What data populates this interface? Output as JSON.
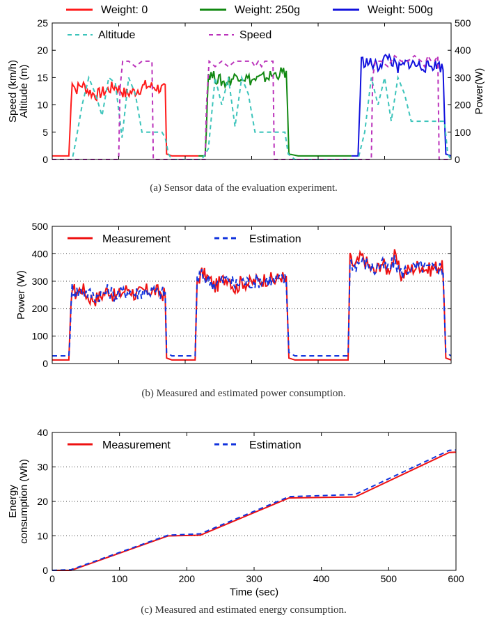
{
  "colors": {
    "weight_0": "#ff1a1a",
    "weight_250g": "#118811",
    "weight_500g": "#1111dd",
    "altitude": "#3cc4bb",
    "speed": "#bb33bb",
    "measurement": "#ee1111",
    "estimation": "#1133dd",
    "power_axis": "#ff2222"
  },
  "chart_data": [
    {
      "type": "line",
      "caption": "(a) Sensor data of the evaluation experiment.",
      "ylabel": "Speed (km/h)\nAltitude (m)",
      "y2label": "Power(W)",
      "ylim": [
        0,
        25
      ],
      "y2lim": [
        0,
        500
      ],
      "yticks": [
        0,
        5,
        10,
        15,
        20,
        25
      ],
      "y2ticks": [
        0,
        100,
        200,
        300,
        400,
        500
      ],
      "xlim": [
        0,
        600
      ],
      "grid": false,
      "legend_top": [
        "Weight: 0",
        "Weight: 250g",
        "Weight: 500g"
      ],
      "legend_inner": [
        "Altitude",
        "Speed"
      ],
      "series": [
        {
          "name": "Weight: 0",
          "axis": "power",
          "x": [
            0,
            25,
            30,
            35,
            45,
            55,
            65,
            80,
            95,
            110,
            125,
            140,
            155,
            170,
            172,
            180,
            220
          ],
          "y": [
            13,
            13,
            295,
            255,
            275,
            250,
            235,
            250,
            270,
            240,
            250,
            270,
            265,
            255,
            20,
            13,
            13
          ]
        },
        {
          "name": "Weight: 250g",
          "axis": "power",
          "x": [
            220,
            230,
            235,
            245,
            260,
            280,
            300,
            320,
            340,
            352,
            356,
            370,
            450
          ],
          "y": [
            13,
            13,
            315,
            300,
            280,
            310,
            290,
            300,
            315,
            320,
            20,
            13,
            13
          ]
        },
        {
          "name": "Weight: 500g",
          "axis": "power",
          "x": [
            450,
            460,
            465,
            475,
            490,
            505,
            520,
            535,
            550,
            565,
            580,
            588,
            592,
            600
          ],
          "y": [
            13,
            13,
            360,
            355,
            340,
            380,
            330,
            355,
            345,
            340,
            350,
            330,
            20,
            13
          ]
        },
        {
          "name": "Altitude",
          "axis": "left",
          "x": [
            0,
            30,
            35,
            45,
            55,
            65,
            75,
            85,
            95,
            105,
            115,
            125,
            135,
            145,
            155,
            165,
            170,
            175,
            180,
            225,
            235,
            245,
            255,
            265,
            275,
            285,
            295,
            305,
            315,
            325,
            335,
            345,
            350,
            355,
            365,
            460,
            470,
            480,
            490,
            500,
            510,
            520,
            530,
            540,
            550,
            560,
            570,
            580,
            590,
            595,
            600
          ],
          "y": [
            0,
            0,
            3,
            10,
            15,
            12,
            8,
            15,
            14,
            4,
            15,
            12,
            5,
            5,
            5,
            5,
            4,
            1,
            0,
            0,
            2,
            15,
            10,
            15,
            6,
            15,
            12,
            5,
            5,
            5,
            5,
            5,
            5,
            1,
            0,
            0,
            5,
            15,
            10,
            15,
            7,
            15,
            12,
            7,
            7,
            7,
            7,
            7,
            7,
            1,
            0
          ],
          "dash": [
            6,
            5
          ]
        },
        {
          "name": "Speed",
          "axis": "left",
          "x": [
            0,
            100,
            102,
            106,
            115,
            125,
            135,
            145,
            150,
            152,
            230,
            232,
            236,
            245,
            255,
            265,
            275,
            285,
            300,
            305,
            310,
            315,
            320,
            325,
            332,
            334,
            480,
            482,
            486,
            495,
            505,
            515,
            525,
            535,
            545,
            555,
            560,
            565,
            570,
            575,
            580,
            582,
            600
          ],
          "y": [
            0,
            0,
            13,
            18,
            18,
            17,
            18,
            18,
            18,
            0,
            0,
            10,
            18,
            17,
            18,
            17,
            18,
            18,
            18,
            17,
            18,
            17,
            18,
            18,
            18,
            0,
            0,
            15,
            18,
            18,
            17,
            19,
            18,
            18,
            19,
            18,
            17,
            19,
            18,
            18,
            19,
            0,
            0
          ],
          "dash": [
            6,
            5
          ]
        }
      ]
    },
    {
      "type": "line",
      "caption": "(b) Measured and estimated power consumption.",
      "ylabel": "Power (W)",
      "ylim": [
        0,
        500
      ],
      "yticks": [
        0,
        100,
        200,
        300,
        400,
        500
      ],
      "xlim": [
        0,
        600
      ],
      "grid": true,
      "legend": [
        "Measurement",
        "Estimation"
      ],
      "series": [
        {
          "name": "Measurement",
          "x": [
            0,
            25,
            30,
            35,
            45,
            55,
            65,
            75,
            85,
            95,
            105,
            115,
            125,
            140,
            155,
            170,
            172,
            180,
            215,
            218,
            225,
            235,
            245,
            255,
            265,
            275,
            285,
            295,
            305,
            315,
            325,
            335,
            345,
            350,
            352,
            356,
            365,
            445,
            448,
            455,
            465,
            475,
            485,
            495,
            505,
            515,
            525,
            535,
            545,
            555,
            565,
            575,
            585,
            588,
            592,
            600
          ],
          "y": [
            13,
            13,
            290,
            255,
            275,
            240,
            235,
            250,
            270,
            240,
            260,
            275,
            250,
            265,
            265,
            250,
            20,
            13,
            13,
            300,
            330,
            310,
            280,
            300,
            320,
            270,
            300,
            290,
            300,
            305,
            310,
            300,
            320,
            300,
            300,
            20,
            13,
            13,
            380,
            350,
            390,
            360,
            330,
            370,
            340,
            390,
            320,
            340,
            350,
            360,
            340,
            350,
            360,
            340,
            20,
            13
          ],
          "dash": null
        },
        {
          "name": "Estimation",
          "x": [
            0,
            25,
            30,
            35,
            45,
            55,
            65,
            75,
            85,
            95,
            105,
            115,
            125,
            140,
            155,
            170,
            172,
            180,
            215,
            218,
            225,
            235,
            245,
            255,
            265,
            275,
            285,
            295,
            305,
            315,
            325,
            335,
            345,
            350,
            352,
            356,
            365,
            445,
            448,
            455,
            465,
            475,
            485,
            495,
            505,
            515,
            525,
            535,
            545,
            555,
            565,
            575,
            585,
            588,
            592,
            600
          ],
          "y": [
            28,
            28,
            280,
            260,
            265,
            255,
            245,
            255,
            265,
            250,
            255,
            265,
            255,
            265,
            260,
            255,
            40,
            28,
            28,
            310,
            320,
            305,
            290,
            300,
            310,
            285,
            300,
            295,
            300,
            305,
            305,
            300,
            310,
            305,
            300,
            40,
            28,
            28,
            370,
            355,
            375,
            360,
            340,
            360,
            345,
            370,
            330,
            345,
            345,
            355,
            345,
            350,
            350,
            345,
            40,
            28
          ],
          "dash": [
            7,
            5
          ]
        }
      ]
    },
    {
      "type": "line",
      "caption": "(c) Measured and estimated energy consumption.",
      "xlabel": "Time (sec)",
      "ylabel": "Energy\nconsumption (Wh)",
      "ylim": [
        0,
        40
      ],
      "yticks": [
        0,
        10,
        20,
        30,
        40
      ],
      "xlim": [
        0,
        600
      ],
      "xticks": [
        0,
        100,
        200,
        300,
        400,
        500,
        600
      ],
      "grid": true,
      "legend": [
        "Measurement",
        "Estimation"
      ],
      "series": [
        {
          "name": "Measurement",
          "x": [
            0,
            28,
            172,
            220,
            352,
            450,
            590,
            600
          ],
          "y": [
            0,
            0,
            10,
            10.2,
            21,
            21.3,
            34.2,
            34.3
          ],
          "dash": null
        },
        {
          "name": "Estimation",
          "x": [
            0,
            28,
            172,
            220,
            352,
            450,
            590,
            600
          ],
          "y": [
            0,
            0.2,
            10.2,
            10.6,
            21.4,
            22,
            34.8,
            34.9
          ],
          "dash": [
            7,
            5
          ]
        }
      ]
    }
  ]
}
